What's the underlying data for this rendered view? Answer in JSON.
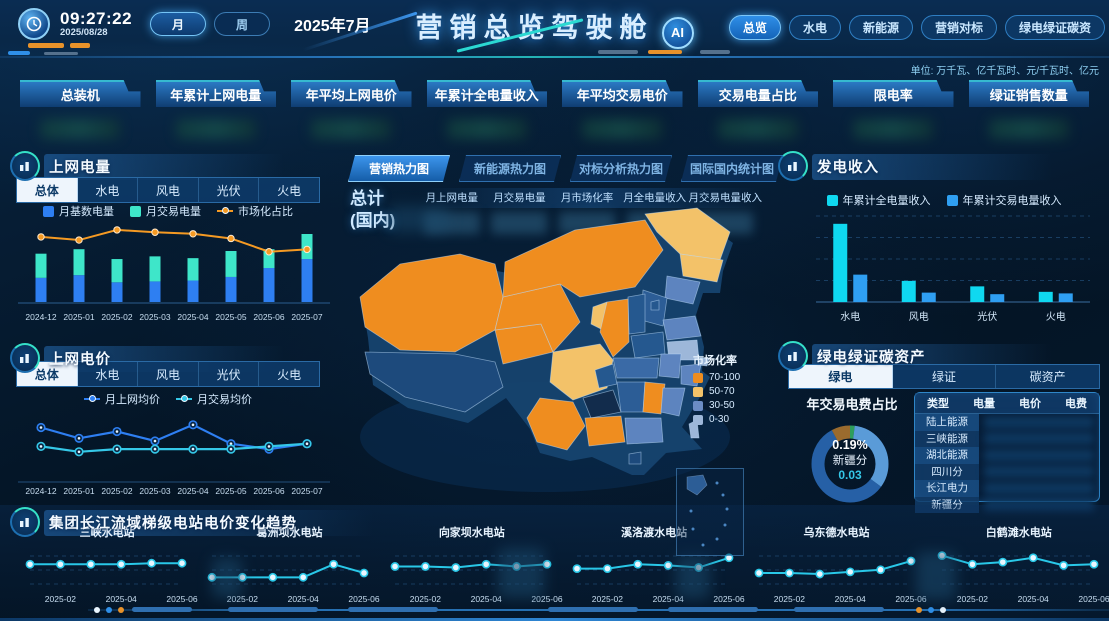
{
  "header": {
    "time": "09:27:22",
    "date": "2025/08/28",
    "period_buttons": [
      {
        "label": "月",
        "active": true
      },
      {
        "label": "周",
        "active": false
      }
    ],
    "current_period": "2025年7月",
    "title": "营销总览驾驶舱",
    "ai_badge": "AI",
    "nav": [
      {
        "label": "总览",
        "active": true
      },
      {
        "label": "水电",
        "active": false
      },
      {
        "label": "新能源",
        "active": false
      },
      {
        "label": "营销对标",
        "active": false
      },
      {
        "label": "绿电绿证碳资",
        "active": false
      }
    ]
  },
  "units_note": "单位: 万千瓦、亿千瓦时、元/千瓦时、亿元",
  "kpi_tiles": [
    "总装机",
    "年累计上网电量",
    "年平均上网电价",
    "年累计全电量收入",
    "年平均交易电价",
    "交易电量占比",
    "限电率",
    "绿证销售数量"
  ],
  "panels": {
    "grid_energy": {
      "title": "上网电量",
      "tabs": [
        {
          "label": "总体",
          "active": true
        },
        {
          "label": "水电",
          "active": false
        },
        {
          "label": "风电",
          "active": false
        },
        {
          "label": "光伏",
          "active": false
        },
        {
          "label": "火电",
          "active": false
        }
      ]
    },
    "grid_price": {
      "title": "上网电价",
      "tabs": [
        {
          "label": "总体",
          "active": true
        },
        {
          "label": "水电",
          "active": false
        },
        {
          "label": "风电",
          "active": false
        },
        {
          "label": "光伏",
          "active": false
        },
        {
          "label": "火电",
          "active": false
        }
      ]
    },
    "map": {
      "tabs": [
        {
          "label": "营销热力图",
          "active": true
        },
        {
          "label": "新能源热力图",
          "active": false
        },
        {
          "label": "对标分析热力图",
          "active": false
        },
        {
          "label": "国际国内统计图",
          "active": false
        }
      ],
      "total_line1": "总计",
      "total_line2": "(国内)",
      "metrics": [
        "月上网电量",
        "月交易电量",
        "月市场化率",
        "月全电量收入",
        "月交易电量收入"
      ],
      "legend_title": "市场化率",
      "legend": [
        {
          "label": "70-100",
          "color": "#ef8d1f"
        },
        {
          "label": "50-70",
          "color": "#f3c269"
        },
        {
          "label": "30-50",
          "color": "#6b8cc4"
        },
        {
          "label": "0-30",
          "color": "#9db7d9"
        }
      ]
    },
    "power_revenue": {
      "title": "发电收入"
    },
    "green_assets": {
      "title": "绿电绿证碳资产",
      "tabs": [
        {
          "label": "绿电",
          "active": true
        },
        {
          "label": "绿证",
          "active": false
        },
        {
          "label": "碳资产",
          "active": false
        }
      ],
      "donut_title": "年交易电费占比",
      "donut_center": {
        "percent": "0.19%",
        "name": "新疆分",
        "value": "0.03"
      },
      "table_headers": [
        "类型",
        "电量",
        "电价",
        "电费"
      ],
      "table_rows": [
        "陆上能源",
        "三峡能源",
        "湖北能源",
        "四川分",
        "长江电力",
        "新疆分"
      ]
    },
    "trend": {
      "title": "集团长江流域梯级电站电价变化趋势"
    }
  },
  "chart_data": [
    {
      "id": "grid_energy",
      "type": "bar",
      "subtype": "stacked-bar-with-line",
      "categories": [
        "2024-12",
        "2025-01",
        "2025-02",
        "2025-03",
        "2025-04",
        "2025-05",
        "2025-06",
        "2025-07"
      ],
      "series": [
        {
          "name": "月基数电量",
          "color": "#2e7ff2",
          "marker": "square",
          "values": [
            27,
            30,
            22,
            23,
            24,
            28,
            38,
            48
          ]
        },
        {
          "name": "月交易电量",
          "color": "#3ee6c9",
          "marker": "square",
          "values": [
            27,
            29,
            26,
            28,
            25,
            29,
            21,
            28
          ]
        }
      ],
      "line": {
        "name": "市场化占比",
        "color": "#f59a23",
        "marker": "dotline",
        "values": [
          86,
          82,
          95,
          92,
          90,
          84,
          67,
          70
        ]
      },
      "ylim": [
        0,
        80
      ],
      "grid": false,
      "legend_position": "top"
    },
    {
      "id": "grid_price",
      "type": "line",
      "categories": [
        "2024-12",
        "2025-01",
        "2025-02",
        "2025-03",
        "2025-04",
        "2025-05",
        "2025-06",
        "2025-07"
      ],
      "series": [
        {
          "name": "月上网均价",
          "color": "#2e7ff2",
          "marker": "dotline",
          "values": [
            70,
            62,
            67,
            60,
            72,
            58,
            54,
            58
          ]
        },
        {
          "name": "月交易均价",
          "color": "#35c8e8",
          "marker": "dotline",
          "values": [
            56,
            52,
            54,
            54,
            54,
            54,
            56,
            58
          ]
        }
      ],
      "ylim": [
        40,
        80
      ],
      "grid": false,
      "legend_position": "top"
    },
    {
      "id": "power_revenue",
      "type": "bar",
      "subtype": "grouped-bar",
      "categories": [
        "水电",
        "风电",
        "光伏",
        "火电"
      ],
      "series": [
        {
          "name": "年累计全电量收入",
          "color": "#0fd8f0",
          "marker": "square",
          "values": [
            100,
            27,
            20,
            13
          ]
        },
        {
          "name": "年累计交易电量收入",
          "color": "#2f9ff2",
          "marker": "square",
          "values": [
            35,
            12,
            10,
            11
          ]
        }
      ],
      "ylim": [
        0,
        110
      ],
      "grid": true,
      "legend_position": "top"
    },
    {
      "id": "green_donut",
      "type": "pie",
      "slices": [
        {
          "value": 2,
          "color": "#2e9e5b"
        },
        {
          "value": 33,
          "color": "#5a9bd8"
        },
        {
          "value": 57,
          "color": "#2660a6"
        },
        {
          "value": 8,
          "color": "#9a6b2e"
        }
      ],
      "center_percent": "0.19%",
      "center_name": "新疆分",
      "center_value": "0.03"
    },
    {
      "id": "stations",
      "type": "line",
      "subtype": "small-multiples",
      "x_labels": [
        "2025-02",
        "2025-04",
        "2025-06"
      ],
      "line_color": "#29c8e8",
      "series": [
        {
          "name": "三峡水电站",
          "values": [
            50,
            50,
            50,
            50,
            51,
            51
          ]
        },
        {
          "name": "葛洲坝水电站",
          "values": [
            38,
            38,
            38,
            38,
            50,
            42
          ]
        },
        {
          "name": "向家坝水电站",
          "values": [
            48,
            48,
            47,
            50,
            48,
            50
          ]
        },
        {
          "name": "溪洛渡水电站",
          "values": [
            46,
            46,
            50,
            49,
            47,
            56
          ]
        },
        {
          "name": "乌东德水电站",
          "values": [
            42,
            42,
            41,
            43,
            45,
            53
          ]
        },
        {
          "name": "白鹤滩水电站",
          "values": [
            58,
            50,
            52,
            56,
            49,
            50
          ]
        }
      ]
    }
  ]
}
